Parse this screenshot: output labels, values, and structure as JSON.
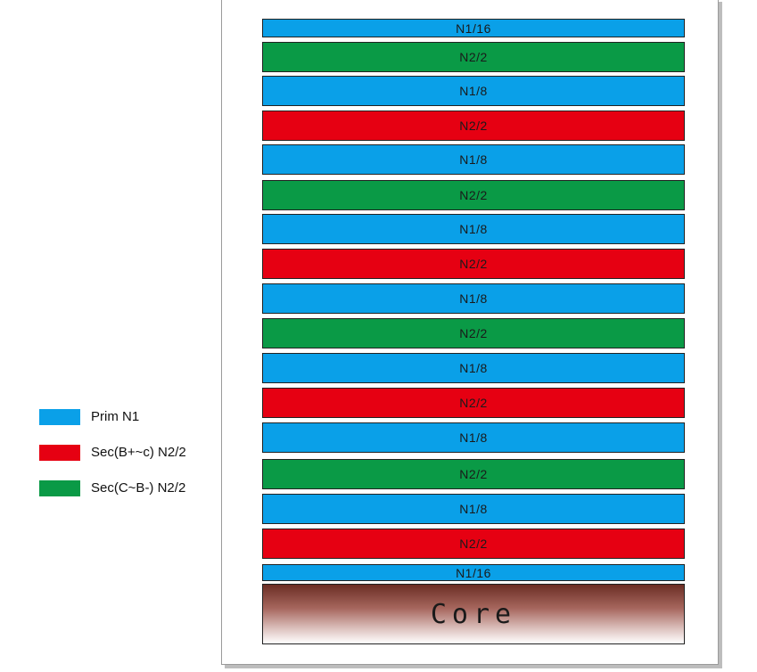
{
  "colors": {
    "primary": "#0aa0e8",
    "secondary_bc": "#e60012",
    "secondary_cb": "#0a9a46"
  },
  "legend": [
    {
      "label": "Prim N1",
      "color": "#0aa0e8"
    },
    {
      "label": "Sec(B+~c) N2/2",
      "color": "#e60012"
    },
    {
      "label": "Sec(C~B-) N2/2",
      "color": "#0a9a46"
    }
  ],
  "layers": [
    {
      "label": "N1/16",
      "color": "#0aa0e8"
    },
    {
      "label": "N2/2",
      "color": "#0a9a46"
    },
    {
      "label": "N1/8",
      "color": "#0aa0e8"
    },
    {
      "label": "N2/2",
      "color": "#e60012"
    },
    {
      "label": "N1/8",
      "color": "#0aa0e8"
    },
    {
      "label": "N2/2",
      "color": "#0a9a46"
    },
    {
      "label": "N1/8",
      "color": "#0aa0e8"
    },
    {
      "label": "N2/2",
      "color": "#e60012"
    },
    {
      "label": "N1/8",
      "color": "#0aa0e8"
    },
    {
      "label": "N2/2",
      "color": "#0a9a46"
    },
    {
      "label": "N1/8",
      "color": "#0aa0e8"
    },
    {
      "label": "N2/2",
      "color": "#e60012"
    },
    {
      "label": "N1/8",
      "color": "#0aa0e8"
    },
    {
      "label": "N2/2",
      "color": "#0a9a46"
    },
    {
      "label": "N1/8",
      "color": "#0aa0e8"
    },
    {
      "label": "N2/2",
      "color": "#e60012"
    },
    {
      "label": "N1/16",
      "color": "#0aa0e8"
    }
  ],
  "core": {
    "label": "Core"
  }
}
